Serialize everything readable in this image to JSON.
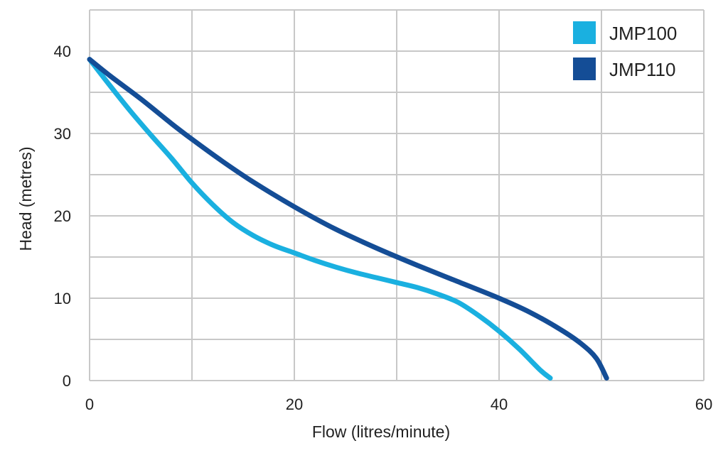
{
  "chart_data": {
    "type": "line",
    "title": "",
    "xlabel": "Flow (litres/minute)",
    "ylabel": "Head (metres)",
    "xlim": [
      0,
      60
    ],
    "ylim": [
      0,
      45
    ],
    "x_ticks": [
      0,
      20,
      40,
      60
    ],
    "y_ticks": [
      0,
      10,
      20,
      30,
      40
    ],
    "x_grid": [
      0,
      10,
      20,
      30,
      40,
      50,
      60
    ],
    "y_grid": [
      0,
      5,
      10,
      15,
      20,
      25,
      30,
      35,
      40,
      45
    ],
    "grid": true,
    "legend_position": "top-right",
    "series": [
      {
        "name": "JMP100",
        "color": "#1ab0e0",
        "x": [
          0,
          2,
          4,
          6,
          8,
          10,
          12,
          14,
          16,
          18,
          20,
          22,
          24,
          26,
          28,
          30,
          32,
          34,
          36,
          38,
          40,
          42,
          44,
          45
        ],
        "y": [
          39,
          35.8,
          32.7,
          29.8,
          27.0,
          24.0,
          21.4,
          19.2,
          17.6,
          16.4,
          15.5,
          14.6,
          13.8,
          13.1,
          12.5,
          11.9,
          11.3,
          10.5,
          9.5,
          7.9,
          6.0,
          3.8,
          1.3,
          0.3
        ]
      },
      {
        "name": "JMP110",
        "color": "#144d96",
        "x": [
          0,
          2,
          5,
          8,
          10,
          13,
          16,
          20,
          24,
          28,
          32,
          36,
          40,
          43,
          46,
          48,
          49.5,
          50.5
        ],
        "y": [
          39,
          37,
          34.2,
          31.2,
          29.3,
          26.6,
          24.1,
          21.1,
          18.4,
          16.1,
          14.0,
          12.0,
          10.0,
          8.3,
          6.2,
          4.5,
          2.7,
          0.3
        ]
      }
    ]
  }
}
